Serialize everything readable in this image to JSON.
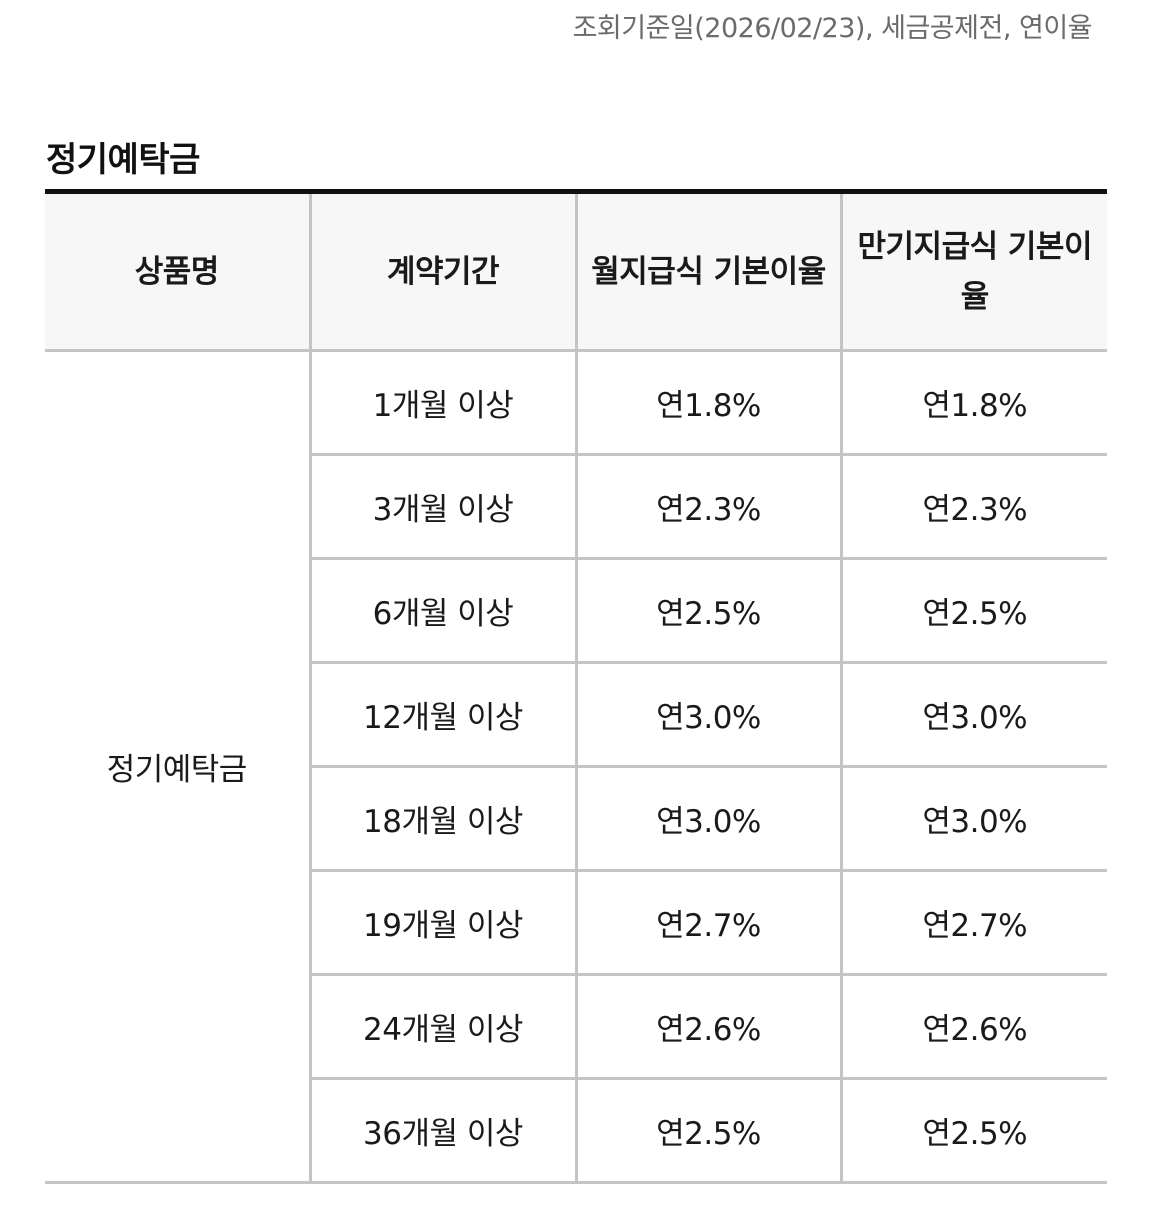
{
  "notice": "조회기준일(2026/02/23), 세금공제전, 연이율",
  "section_title": "정기예탁금",
  "table": {
    "headers": [
      "상품명",
      "계약기간",
      "월지급식 기본이율",
      "만기지급식 기본이율"
    ],
    "product_name": "정기예탁금",
    "rows": [
      {
        "period": "1개월 이상",
        "monthly_rate": "연1.8%",
        "maturity_rate": "연1.8%"
      },
      {
        "period": "3개월 이상",
        "monthly_rate": "연2.3%",
        "maturity_rate": "연2.3%"
      },
      {
        "period": "6개월 이상",
        "monthly_rate": "연2.5%",
        "maturity_rate": "연2.5%"
      },
      {
        "period": "12개월 이상",
        "monthly_rate": "연3.0%",
        "maturity_rate": "연3.0%"
      },
      {
        "period": "18개월 이상",
        "monthly_rate": "연3.0%",
        "maturity_rate": "연3.0%"
      },
      {
        "period": "19개월 이상",
        "monthly_rate": "연2.7%",
        "maturity_rate": "연2.7%"
      },
      {
        "period": "24개월 이상",
        "monthly_rate": "연2.6%",
        "maturity_rate": "연2.6%"
      },
      {
        "period": "36개월 이상",
        "monthly_rate": "연2.5%",
        "maturity_rate": "연2.5%"
      }
    ]
  }
}
